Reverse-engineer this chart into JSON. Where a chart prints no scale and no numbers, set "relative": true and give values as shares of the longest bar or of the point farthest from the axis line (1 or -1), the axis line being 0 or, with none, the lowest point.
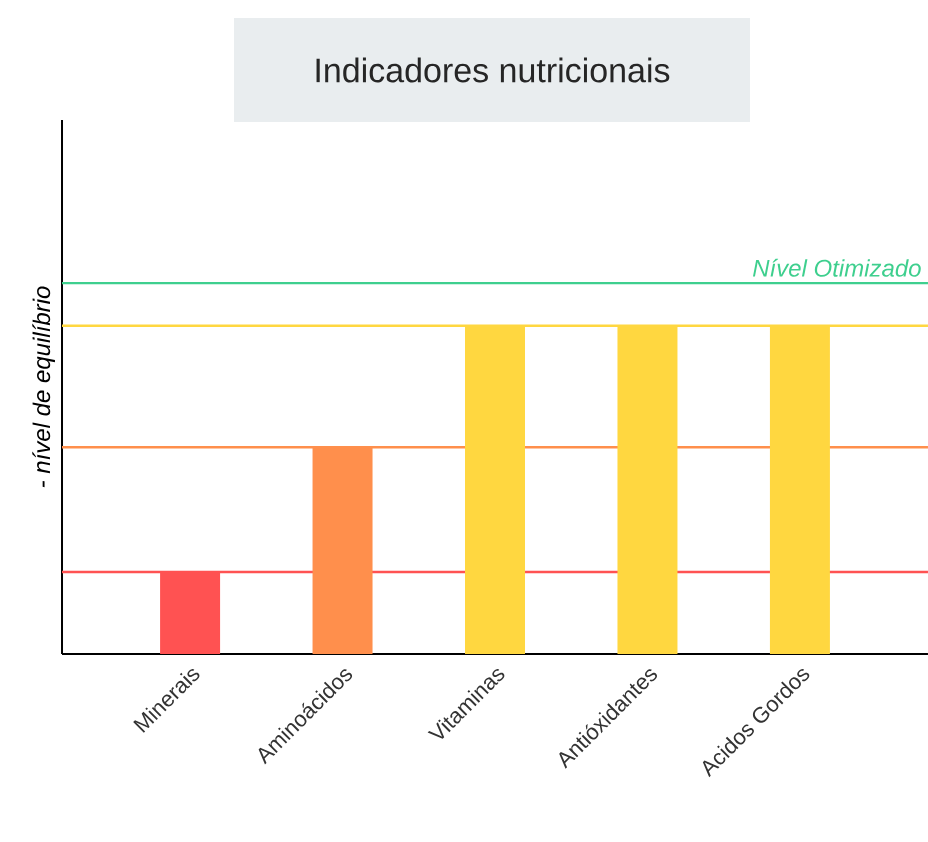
{
  "chart_data": {
    "type": "bar",
    "title": "Indicadores nutricionais",
    "ylabel": "- nível de equilíbrio",
    "categories": [
      "Minerais",
      "Aminoácidos",
      "Vitaminas",
      "Antióxidantes",
      "Acidos Gordos"
    ],
    "values": [
      0.25,
      0.63,
      1,
      1,
      1
    ],
    "colors": [
      "#ff5252",
      "#ff8f4c",
      "#ffd740",
      "#ffd740",
      "#ffd740"
    ],
    "relative": true,
    "ref_lines": [
      {
        "axis": "y",
        "value": 0.25,
        "color": "#ff5252"
      },
      {
        "axis": "y",
        "value": 0.63,
        "color": "#ff8f4c"
      },
      {
        "axis": "y",
        "value": 1,
        "color": "#ffd740"
      },
      {
        "axis": "y",
        "value": 1.13,
        "color": "#3ecf8e",
        "label": "Nível Otimizado"
      }
    ]
  }
}
